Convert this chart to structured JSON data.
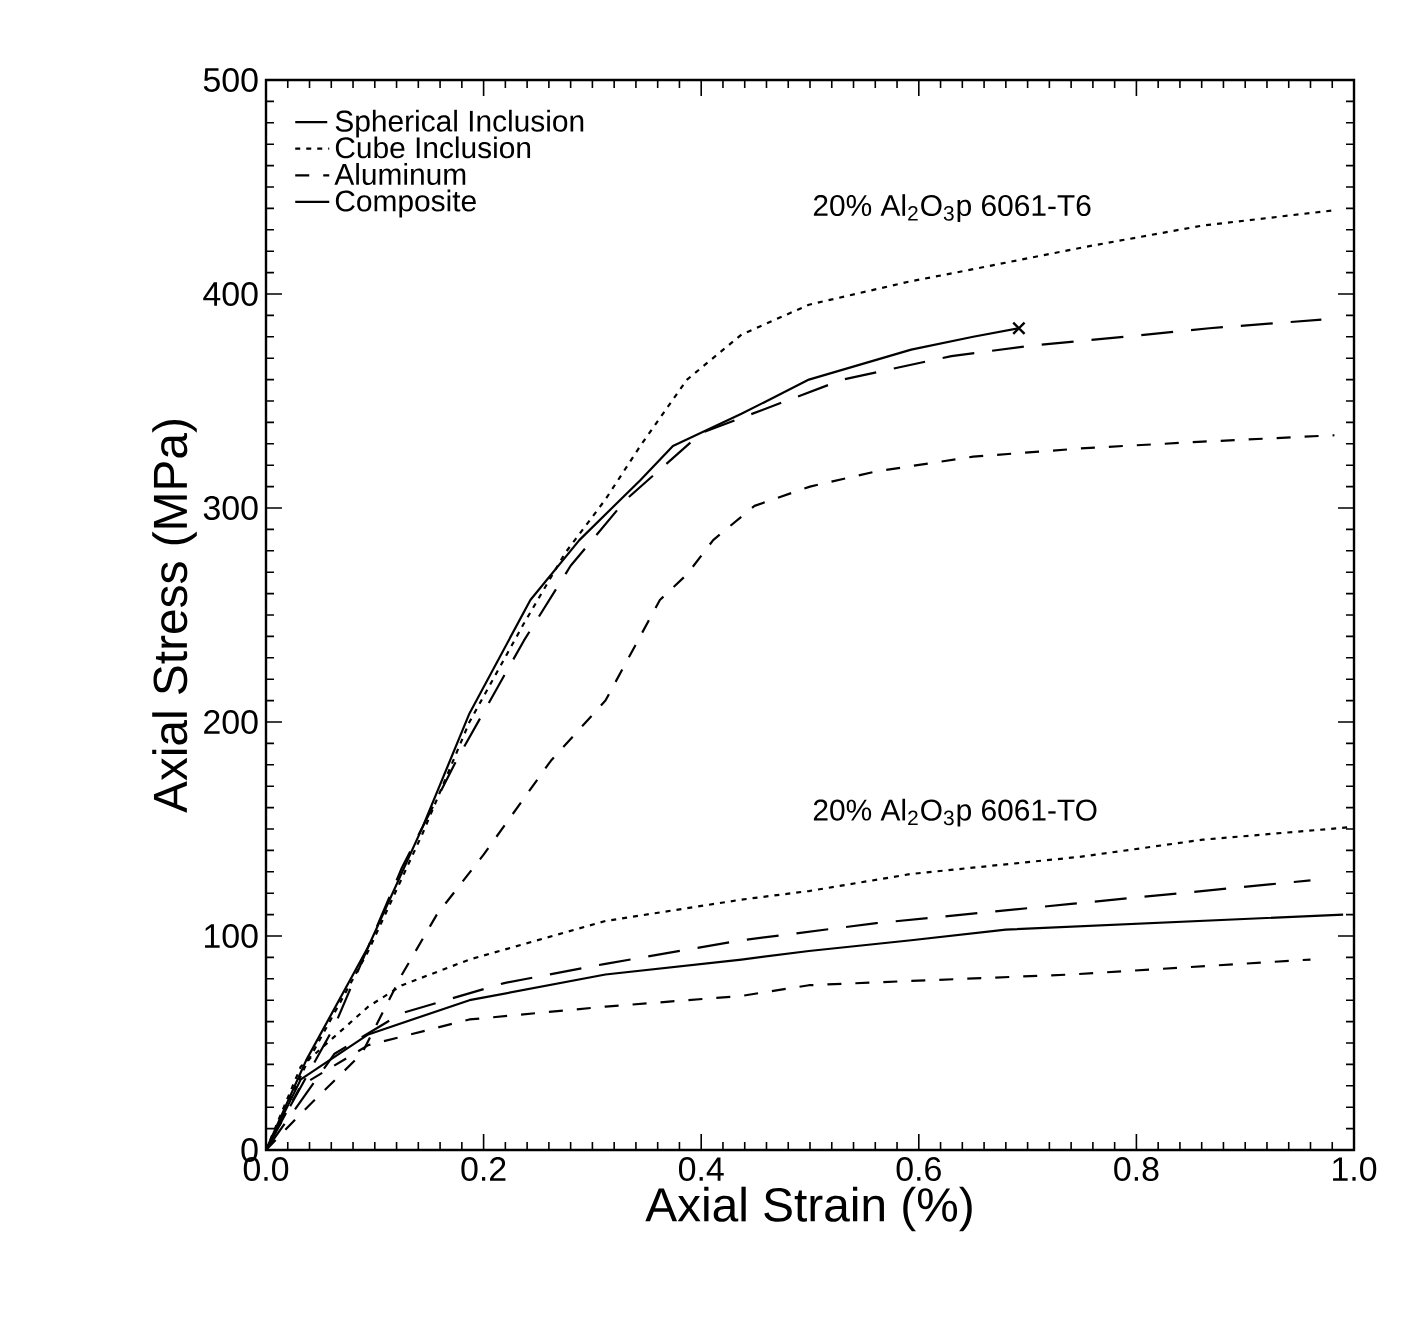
{
  "chart_data": {
    "type": "line",
    "xlabel": "Axial Strain (%)",
    "ylabel": "Axial Stress (MPa)",
    "xlim": [
      0,
      1
    ],
    "ylim": [
      0,
      500
    ],
    "xticks": [
      {
        "value": 0,
        "label": "0.0"
      },
      0.2,
      0.4,
      0.6,
      0.8,
      {
        "value": 1,
        "label": "1.0"
      }
    ],
    "yticks": [
      0,
      100,
      200,
      300,
      400,
      500
    ],
    "grid": false,
    "legend": "top left",
    "annotations": [
      "20% Al$_{2}$O$_{3}$p 6061-T6",
      "20% Al$_{2}$O$_{3}$p 6061-TO"
    ],
    "series": [
      {
        "name": "Spherical Inclusion",
        "color": "#000000",
        "line_style": "dashed",
        "x": [
          0,
          0.063,
          0.125,
          0.175,
          0.237,
          0.28,
          0.331,
          0.4,
          0.53,
          0.63,
          0.705,
          0.789,
          0.867,
          0.97
        ],
        "values": [
          0,
          58,
          132,
          182,
          238,
          273,
          304,
          335,
          360,
          371,
          376,
          380,
          384,
          388
        ]
      },
      {
        "name": "Cube Inclusion",
        "color": "#000000",
        "line_style": "dotted",
        "x": [
          0,
          0.037,
          0.094,
          0.144,
          0.187,
          0.237,
          0.275,
          0.312,
          0.344,
          0.387,
          0.437,
          0.499,
          0.593,
          0.624,
          0.753,
          0.861,
          0.98
        ],
        "values": [
          0,
          40,
          93,
          148,
          200,
          246,
          279,
          304,
          329,
          360,
          381,
          395,
          406,
          409,
          422,
          432,
          439
        ]
      },
      {
        "name": "Aluminum",
        "color": "#000000",
        "line_style": "dashed",
        "x": [
          0,
          0.032,
          0.088,
          0.125,
          0.157,
          0.2,
          0.262,
          0.312,
          0.362,
          0.387,
          0.411,
          0.449,
          0.5,
          0.56,
          0.65,
          0.753,
          0.861,
          0.982
        ],
        "values": [
          0,
          17,
          45,
          82,
          110,
          138,
          182,
          210,
          257,
          269,
          285,
          301,
          310,
          317,
          324,
          328,
          331,
          334
        ]
      },
      {
        "name": "Composite",
        "color": "#000000",
        "line_style": "solid",
        "x": [
          0,
          0.037,
          0.094,
          0.144,
          0.187,
          0.243,
          0.288,
          0.344,
          0.374,
          0.437,
          0.499,
          0.593,
          0.65,
          0.692
        ],
        "values": [
          0,
          42,
          95,
          151,
          204,
          257,
          285,
          313,
          329,
          344,
          360,
          374,
          380,
          384
        ]
      },
      {
        "color": "#000000",
        "line_style": "dashed",
        "x": [
          0,
          0.063,
          0.125,
          0.219,
          0.312,
          0.437,
          0.561,
          0.74,
          0.96
        ],
        "values": [
          0,
          45,
          64,
          78,
          87,
          98,
          106,
          115,
          126
        ]
      },
      {
        "color": "#000000",
        "line_style": "dotted",
        "x": [
          0,
          0.032,
          0.094,
          0.125,
          0.187,
          0.312,
          0.437,
          0.499,
          0.593,
          0.748,
          0.861,
          1.0
        ],
        "values": [
          0,
          39,
          67,
          77,
          89,
          107,
          117,
          121,
          129,
          137,
          145,
          151
        ]
      },
      {
        "color": "#000000",
        "line_style": "dashed",
        "x": [
          0,
          0.032,
          0.094,
          0.187,
          0.312,
          0.437,
          0.499,
          0.593,
          0.74,
          0.96
        ],
        "values": [
          0,
          30,
          49,
          61,
          67,
          72,
          77,
          79,
          82,
          89
        ]
      },
      {
        "color": "#000000",
        "line_style": "solid",
        "x": [
          0,
          0.032,
          0.094,
          0.187,
          0.312,
          0.437,
          0.499,
          0.593,
          0.68,
          0.99
        ],
        "values": [
          0,
          33,
          54,
          70,
          82,
          89,
          93,
          98,
          103,
          110
        ]
      },
      {
        "type": "scatter",
        "color": "#000000",
        "marker": "cross",
        "x": [
          0.692
        ],
        "values": [
          384
        ]
      }
    ]
  }
}
